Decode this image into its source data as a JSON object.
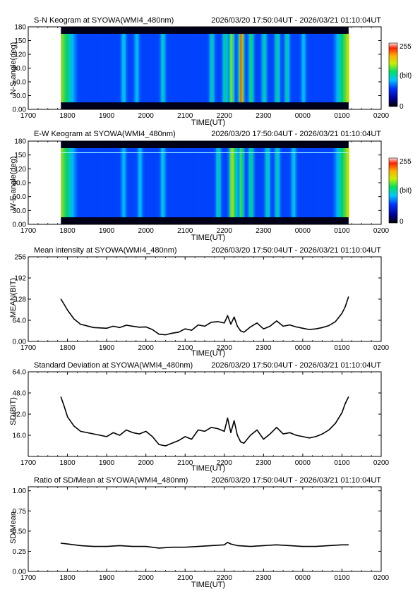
{
  "chart_data": [
    {
      "type": "heatmap",
      "title": "S-N Keogram at SYOWA(WMI4_480nm)",
      "time_range": "2026/03/20 17:50:04UT - 2026/03/21 01:10:04UT",
      "xlabel": "TIME(UT)",
      "ylabel": "N-S angle(deg)",
      "x_ticks": [
        "1700",
        "1800",
        "1900",
        "2000",
        "2100",
        "2200",
        "2300",
        "0000",
        "0100",
        "0200"
      ],
      "y_ticks": [
        "0.00",
        "30.0",
        "60.0",
        "90.0",
        "120",
        "150",
        "180"
      ],
      "ylim": [
        0,
        180
      ],
      "data_start": "17:50:04",
      "data_end": "01:10:04",
      "colorbar": {
        "min_label": "0",
        "mid_label": "(bit)",
        "max_label": "255"
      },
      "bands": [
        {
          "center": 1925,
          "strength": 0.35
        },
        {
          "center": 1945,
          "strength": 0.3
        },
        {
          "center": 1985,
          "strength": 0.4
        },
        {
          "center": 2140,
          "strength": 0.45
        },
        {
          "center": 2160,
          "strength": 0.5
        },
        {
          "center": 2185,
          "strength": 0.55
        },
        {
          "center": 2210,
          "strength": 0.8
        },
        {
          "center": 2225,
          "strength": 0.75
        },
        {
          "center": 2240,
          "strength": 0.6
        },
        {
          "center": 2300,
          "strength": 0.45
        },
        {
          "center": 2320,
          "strength": 0.5
        },
        {
          "center": 2335,
          "strength": 0.45
        },
        {
          "center": 2400,
          "strength": 0.3
        }
      ]
    },
    {
      "type": "heatmap",
      "title": "E-W Keogram at SYOWA(WMI4_480nm)",
      "time_range": "2026/03/20 17:50:04UT - 2026/03/21 01:10:04UT",
      "xlabel": "TIME(UT)",
      "ylabel": "W-E angle(deg)",
      "x_ticks": [
        "1700",
        "1800",
        "1900",
        "2000",
        "2100",
        "2200",
        "2300",
        "0000",
        "0100",
        "0200"
      ],
      "y_ticks": [
        "0.00",
        "30.0",
        "60.0",
        "90.0",
        "120",
        "150",
        "180"
      ],
      "ylim": [
        0,
        180
      ],
      "data_start": "17:50:04",
      "data_end": "01:10:04",
      "colorbar": {
        "min_label": "0",
        "mid_label": "(bit)",
        "max_label": "255"
      },
      "bands": [
        {
          "center": 1925,
          "strength": 0.3
        },
        {
          "center": 1950,
          "strength": 0.3
        },
        {
          "center": 1985,
          "strength": 0.35
        },
        {
          "center": 2150,
          "strength": 0.45
        },
        {
          "center": 2175,
          "strength": 0.5
        },
        {
          "center": 2210,
          "strength": 0.75
        },
        {
          "center": 2225,
          "strength": 0.7
        },
        {
          "center": 2240,
          "strength": 0.55
        },
        {
          "center": 2305,
          "strength": 0.45
        },
        {
          "center": 2320,
          "strength": 0.45
        },
        {
          "center": 2345,
          "strength": 0.35
        }
      ]
    },
    {
      "type": "line",
      "title": "Mean intensity at SYOWA(WMI4_480nm)",
      "time_range": "2026/03/20 17:50:04UT - 2026/03/21 01:10:04UT",
      "xlabel": "TIME(UT)",
      "ylabel": "MEAN(BIT)",
      "x_ticks": [
        "1700",
        "1800",
        "1900",
        "2000",
        "2100",
        "2200",
        "2300",
        "0000",
        "0100",
        "0200"
      ],
      "y_ticks": [
        "0.00",
        "64.0",
        "128",
        "192",
        "256"
      ],
      "ylim": [
        0,
        256
      ],
      "series": [
        {
          "x": [
            "17:50",
            "17:55",
            "18:00",
            "18:10",
            "18:20",
            "18:40",
            "19:00",
            "19:10",
            "19:20",
            "19:30",
            "19:40",
            "19:50",
            "20:00",
            "20:10",
            "20:20",
            "20:30",
            "20:40",
            "20:50",
            "21:00",
            "21:10",
            "21:20",
            "21:30",
            "21:40",
            "21:50",
            "22:00",
            "22:05",
            "22:10",
            "22:15",
            "22:20",
            "22:25",
            "22:30",
            "22:40",
            "22:50",
            "23:00",
            "23:10",
            "23:20",
            "23:30",
            "23:40",
            "23:50",
            "00:00",
            "00:10",
            "00:20",
            "00:30",
            "00:40",
            "00:50",
            "01:00",
            "01:05",
            "01:10"
          ],
          "y": [
            128,
            112,
            95,
            68,
            52,
            42,
            40,
            46,
            42,
            49,
            46,
            43,
            44,
            36,
            22,
            20,
            25,
            28,
            38,
            34,
            50,
            46,
            58,
            60,
            56,
            78,
            52,
            74,
            46,
            32,
            28,
            44,
            56,
            38,
            46,
            62,
            46,
            50,
            44,
            40,
            36,
            38,
            42,
            48,
            60,
            85,
            105,
            135
          ]
        }
      ]
    },
    {
      "type": "line",
      "title": "Standard Deviation at SYOWA(WMI4_480nm)",
      "time_range": "2026/03/20 17:50:04UT - 2026/03/21 01:10:04UT",
      "xlabel": "TIME(UT)",
      "ylabel": "SD(BIT)",
      "x_ticks": [
        "1700",
        "1800",
        "1900",
        "2000",
        "2100",
        "2200",
        "2300",
        "0000",
        "0100",
        "0200"
      ],
      "y_ticks": [
        "16.0",
        "32.0",
        "48.0",
        "64.0"
      ],
      "ylim": [
        0,
        64
      ],
      "series": [
        {
          "x": [
            "17:50",
            "17:55",
            "18:00",
            "18:10",
            "18:20",
            "18:40",
            "19:00",
            "19:10",
            "19:20",
            "19:30",
            "19:40",
            "19:50",
            "20:00",
            "20:10",
            "20:20",
            "20:30",
            "20:40",
            "20:50",
            "21:00",
            "21:10",
            "21:20",
            "21:30",
            "21:40",
            "21:50",
            "22:00",
            "22:05",
            "22:10",
            "22:15",
            "22:20",
            "22:25",
            "22:30",
            "22:40",
            "22:50",
            "23:00",
            "23:10",
            "23:20",
            "23:30",
            "23:40",
            "23:50",
            "00:00",
            "00:10",
            "00:20",
            "00:30",
            "00:40",
            "00:50",
            "01:00",
            "01:05",
            "01:10"
          ],
          "y": [
            45,
            38,
            30,
            23,
            19,
            17,
            15,
            18,
            16,
            20,
            18,
            17,
            19,
            15,
            9,
            8,
            10,
            12,
            15,
            13,
            20,
            19,
            22,
            21,
            19,
            29,
            18,
            27,
            16,
            11,
            10,
            16,
            20,
            13,
            17,
            22,
            17,
            18,
            16,
            15,
            14,
            15,
            17,
            20,
            25,
            33,
            40,
            45
          ]
        }
      ]
    },
    {
      "type": "line",
      "title": "Ratio of SD/Mean at SYOWA(WMI4_480nm)",
      "time_range": "2026/03/20 17:50:04UT - 2026/03/21 01:10:04UT",
      "xlabel": "TIME(UT)",
      "ylabel": "SD/Mean",
      "x_ticks": [
        "1700",
        "1800",
        "1900",
        "2000",
        "2100",
        "2200",
        "2300",
        "0000",
        "0100",
        "0200"
      ],
      "y_ticks": [
        "0.00",
        "0.25",
        "0.50",
        "0.75",
        "1.00"
      ],
      "ylim": [
        0,
        1.05
      ],
      "series": [
        {
          "x": [
            "17:50",
            "18:00",
            "18:20",
            "18:40",
            "19:00",
            "19:20",
            "19:40",
            "20:00",
            "20:20",
            "20:40",
            "21:00",
            "21:20",
            "21:40",
            "22:00",
            "22:05",
            "22:10",
            "22:20",
            "22:40",
            "23:00",
            "23:20",
            "23:40",
            "00:00",
            "00:20",
            "00:40",
            "01:00",
            "01:10"
          ],
          "y": [
            0.35,
            0.34,
            0.32,
            0.31,
            0.31,
            0.32,
            0.31,
            0.31,
            0.29,
            0.3,
            0.3,
            0.31,
            0.32,
            0.33,
            0.36,
            0.34,
            0.32,
            0.31,
            0.32,
            0.33,
            0.32,
            0.31,
            0.31,
            0.32,
            0.33,
            0.33
          ]
        }
      ]
    }
  ]
}
